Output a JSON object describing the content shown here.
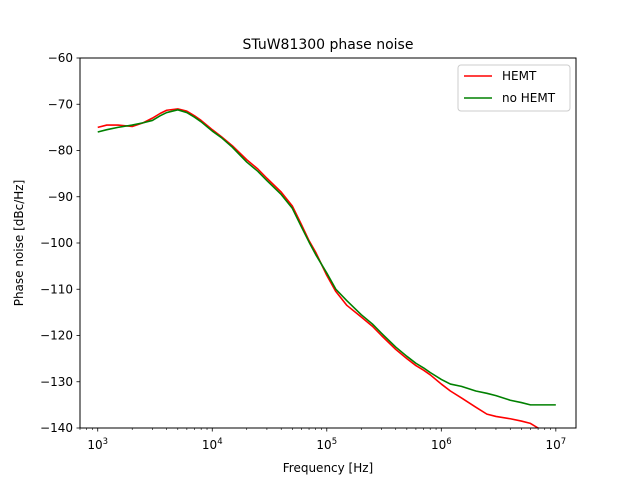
{
  "chart_data": {
    "type": "line",
    "title": "STuW81300 phase noise",
    "xlabel": "Frequency [Hz]",
    "ylabel": "Phase noise [dBc/Hz]",
    "xscale": "log",
    "xlim": [
      700,
      15000000
    ],
    "ylim": [
      -140,
      -60
    ],
    "x_ticks": [
      {
        "value": 1000,
        "base": "10",
        "exp": "3"
      },
      {
        "value": 10000,
        "base": "10",
        "exp": "4"
      },
      {
        "value": 100000,
        "base": "10",
        "exp": "5"
      },
      {
        "value": 1000000,
        "base": "10",
        "exp": "6"
      },
      {
        "value": 10000000,
        "base": "10",
        "exp": "7"
      }
    ],
    "y_ticks": [
      {
        "value": -60,
        "label": "−60"
      },
      {
        "value": -70,
        "label": "−70"
      },
      {
        "value": -80,
        "label": "−80"
      },
      {
        "value": -90,
        "label": "−90"
      },
      {
        "value": -100,
        "label": "−100"
      },
      {
        "value": -110,
        "label": "−110"
      },
      {
        "value": -120,
        "label": "−120"
      },
      {
        "value": -130,
        "label": "−130"
      },
      {
        "value": -140,
        "label": "−140"
      }
    ],
    "grid": false,
    "legend_position": "top-right",
    "series": [
      {
        "name": "HEMT",
        "color": "#ff0000",
        "x": [
          1000,
          1200,
          1500,
          2000,
          2500,
          3000,
          3500,
          4000,
          5000,
          6000,
          7000,
          8000,
          10000,
          12000,
          15000,
          20000,
          25000,
          30000,
          40000,
          50000,
          60000,
          70000,
          80000,
          100000,
          120000,
          150000,
          200000,
          250000,
          300000,
          400000,
          500000,
          600000,
          700000,
          800000,
          1000000,
          1200000,
          1500000,
          2000000,
          2500000,
          3000000,
          4000000,
          5000000,
          6000000,
          7000000,
          8000000,
          10000000
        ],
        "y": [
          -75,
          -74.5,
          -74.5,
          -74.8,
          -74,
          -73,
          -72,
          -71.3,
          -71,
          -71.5,
          -72.5,
          -73.5,
          -75.5,
          -77,
          -79,
          -82,
          -84,
          -86,
          -89,
          -92,
          -96,
          -99.5,
          -102,
          -107,
          -110.5,
          -113.5,
          -116,
          -118,
          -120,
          -123,
          -125,
          -126.5,
          -127.5,
          -128.5,
          -130.5,
          -132,
          -133.5,
          -135.5,
          -137,
          -137.5,
          -138,
          -138.5,
          -139,
          -140,
          -140.5,
          -141
        ]
      },
      {
        "name": "no HEMT",
        "color": "#008000",
        "x": [
          1000,
          1200,
          1500,
          2000,
          2500,
          3000,
          3500,
          4000,
          5000,
          6000,
          7000,
          8000,
          10000,
          12000,
          15000,
          20000,
          25000,
          30000,
          40000,
          50000,
          60000,
          70000,
          80000,
          100000,
          120000,
          150000,
          200000,
          250000,
          300000,
          400000,
          500000,
          600000,
          700000,
          800000,
          1000000,
          1200000,
          1500000,
          2000000,
          2500000,
          3000000,
          4000000,
          5000000,
          6000000,
          7000000,
          8000000,
          10000000
        ],
        "y": [
          -76,
          -75.5,
          -75,
          -74.5,
          -74,
          -73.5,
          -72.5,
          -71.8,
          -71.2,
          -71.8,
          -72.8,
          -73.8,
          -75.8,
          -77.2,
          -79.3,
          -82.5,
          -84.5,
          -86.5,
          -89.5,
          -92.5,
          -96.5,
          -99.8,
          -102.5,
          -106.5,
          -110,
          -112.5,
          -115.5,
          -117.5,
          -119.5,
          -122.5,
          -124.5,
          -126,
          -127,
          -128,
          -129.5,
          -130.5,
          -131,
          -132,
          -132.5,
          -133,
          -134,
          -134.5,
          -135,
          -135,
          -135,
          -135
        ]
      }
    ]
  }
}
